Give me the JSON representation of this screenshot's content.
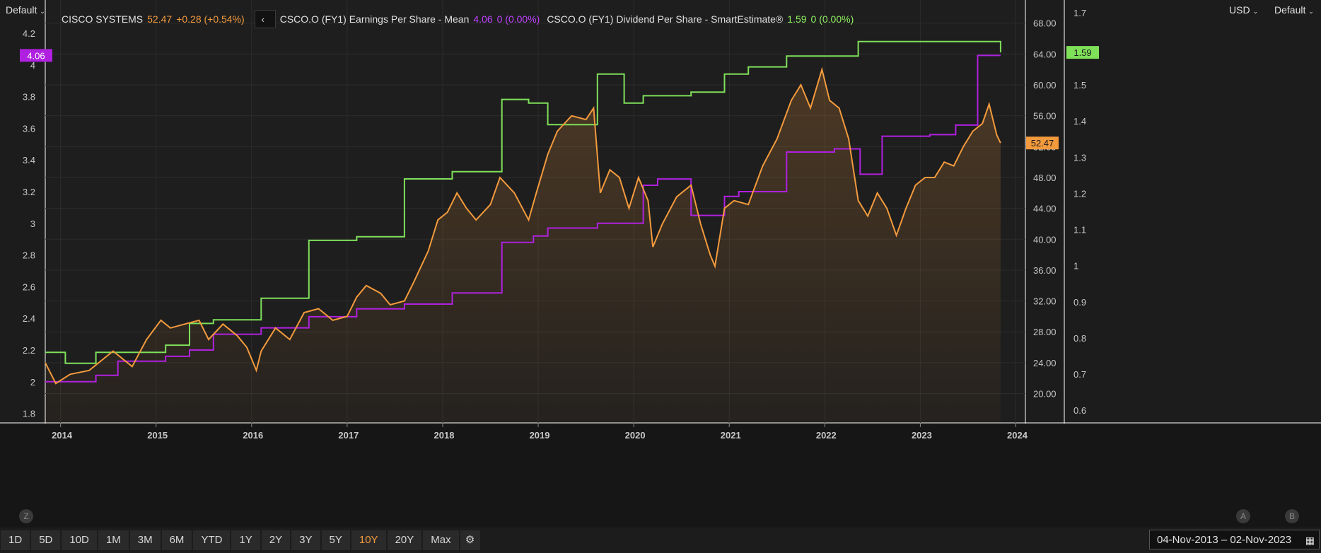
{
  "scale_left_label": "Default",
  "scale_right_label": "Default",
  "currency_label": "USD",
  "legend": {
    "price_name": "CISCO SYSTEMS",
    "price_value": "52.47",
    "price_change": "+0.28 (+0.54%)",
    "nav_icon": "chevron-left-icon",
    "eps_name": "CSCO.O (FY1) Earnings Per Share - Mean",
    "eps_value": "4.06",
    "eps_change": "0 (0.00%)",
    "dps_name": "CSCO.O (FY1) Dividend Per Share - SmartEstimate®",
    "dps_value": "1.59",
    "dps_change": "0 (0.00%)"
  },
  "colors": {
    "price": "#f39a3d",
    "eps": "#b020e0",
    "dps": "#7fe05a",
    "background": "#1c1c1c",
    "grid": "#2c2c2c"
  },
  "range_buttons": [
    "1D",
    "5D",
    "10D",
    "1M",
    "3M",
    "6M",
    "YTD",
    "1Y",
    "2Y",
    "3Y",
    "5Y",
    "10Y",
    "20Y",
    "Max"
  ],
  "active_range": "10Y",
  "settings_icon": "gear-icon",
  "calendar_icon": "calendar-icon",
  "date_range": "04-Nov-2013  –  02-Nov-2023",
  "corner_z": "Z",
  "corner_a": "A",
  "corner_b": "B",
  "chart_data": {
    "type": "line",
    "x_ticks": [
      "2014",
      "2015",
      "2016",
      "2017",
      "2018",
      "2019",
      "2020",
      "2021",
      "2022",
      "2023",
      "2024"
    ],
    "xlim": [
      2013.84,
      2024.1
    ],
    "axes": {
      "left": {
        "ticks": [
          "1.8",
          "2",
          "2.2",
          "2.4",
          "2.6",
          "2.8",
          "3",
          "3.2",
          "3.4",
          "3.6",
          "3.8",
          "4",
          "4.2"
        ],
        "ylim": [
          1.74,
          4.41
        ],
        "series": "EPS"
      },
      "price": {
        "ticks": [
          "20.00",
          "24.00",
          "28.00",
          "32.00",
          "36.00",
          "40.00",
          "44.00",
          "48.00",
          "52.00",
          "56.00",
          "60.00",
          "64.00",
          "68.00"
        ],
        "ylim": [
          16.2,
          71.0
        ],
        "unit": "USD",
        "series": "Price"
      },
      "right": {
        "ticks": [
          "0.6",
          "0.7",
          "0.8",
          "0.9",
          "1",
          "1.1",
          "1.2",
          "1.3",
          "1.4",
          "1.5",
          "1.7"
        ],
        "ylim": [
          0.565,
          1.735
        ],
        "series": "DPS"
      }
    },
    "last_value_badges": {
      "eps": "4.06",
      "price": "52.47",
      "dps": "1.59"
    },
    "series": [
      {
        "name": "CISCO SYSTEMS",
        "axis": "price",
        "style": "area",
        "x": [
          2013.84,
          2013.95,
          2014.1,
          2014.3,
          2014.55,
          2014.75,
          2014.9,
          2015.05,
          2015.15,
          2015.3,
          2015.45,
          2015.55,
          2015.7,
          2015.85,
          2015.95,
          2016.05,
          2016.1,
          2016.25,
          2016.4,
          2016.55,
          2016.7,
          2016.85,
          2017.0,
          2017.1,
          2017.2,
          2017.35,
          2017.45,
          2017.6,
          2017.7,
          2017.85,
          2017.95,
          2018.05,
          2018.15,
          2018.25,
          2018.35,
          2018.5,
          2018.6,
          2018.75,
          2018.9,
          2018.98,
          2019.1,
          2019.2,
          2019.35,
          2019.5,
          2019.58,
          2019.65,
          2019.75,
          2019.85,
          2019.95,
          2020.05,
          2020.15,
          2020.2,
          2020.3,
          2020.45,
          2020.6,
          2020.7,
          2020.8,
          2020.85,
          2020.95,
          2021.05,
          2021.2,
          2021.35,
          2021.5,
          2021.65,
          2021.75,
          2021.85,
          2021.97,
          2022.05,
          2022.15,
          2022.25,
          2022.35,
          2022.45,
          2022.55,
          2022.65,
          2022.75,
          2022.85,
          2022.95,
          2023.05,
          2023.15,
          2023.25,
          2023.35,
          2023.45,
          2023.55,
          2023.65,
          2023.72,
          2023.8,
          2023.84
        ],
        "y": [
          24.0,
          21.3,
          22.5,
          23.0,
          25.5,
          23.5,
          27.0,
          29.5,
          28.5,
          29.0,
          29.5,
          27.0,
          29.0,
          27.5,
          26.0,
          23.0,
          25.5,
          28.5,
          27.0,
          30.5,
          31.0,
          29.5,
          30.0,
          32.5,
          34.0,
          33.0,
          31.5,
          32.0,
          34.5,
          38.5,
          42.5,
          43.5,
          46.0,
          44.0,
          42.5,
          44.5,
          48.0,
          46.0,
          42.5,
          46.0,
          51.0,
          54.0,
          56.0,
          55.5,
          57.0,
          46.0,
          49.0,
          48.0,
          44.0,
          48.0,
          45.0,
          39.0,
          42.0,
          45.5,
          47.0,
          42.0,
          38.0,
          36.5,
          44.0,
          45.0,
          44.5,
          49.5,
          53.0,
          58.0,
          60.0,
          57.0,
          62.0,
          58.0,
          57.0,
          53.0,
          45.0,
          43.0,
          46.0,
          44.0,
          40.5,
          44.0,
          47.0,
          48.0,
          48.0,
          50.0,
          49.5,
          52.0,
          54.0,
          55.0,
          57.5,
          53.5,
          52.47
        ]
      },
      {
        "name": "CSCO.O (FY1) Earnings Per Share - Mean",
        "axis": "left",
        "style": "step",
        "x": [
          2013.84,
          2014.05,
          2014.37,
          2014.6,
          2014.85,
          2015.1,
          2015.35,
          2015.6,
          2016.1,
          2016.6,
          2017.1,
          2017.6,
          2018.1,
          2018.62,
          2018.95,
          2019.1,
          2019.62,
          2020.1,
          2020.25,
          2020.6,
          2020.95,
          2021.1,
          2021.6,
          2022.1,
          2022.37,
          2022.6,
          2023.1,
          2023.37,
          2023.6,
          2023.84
        ],
        "y": [
          2.0,
          2.0,
          2.04,
          2.13,
          2.13,
          2.16,
          2.2,
          2.3,
          2.34,
          2.41,
          2.46,
          2.49,
          2.56,
          2.88,
          2.92,
          2.97,
          3.0,
          3.24,
          3.28,
          3.05,
          3.17,
          3.2,
          3.45,
          3.47,
          3.31,
          3.55,
          3.56,
          3.62,
          4.06,
          4.06
        ]
      },
      {
        "name": "CSCO.O (FY1) Dividend Per Share - SmartEstimate®",
        "axis": "right",
        "style": "step",
        "x": [
          2013.84,
          2014.05,
          2014.37,
          2014.6,
          2014.85,
          2015.1,
          2015.35,
          2015.6,
          2016.1,
          2016.6,
          2017.1,
          2017.6,
          2018.1,
          2018.62,
          2018.9,
          2019.1,
          2019.62,
          2019.9,
          2020.1,
          2020.6,
          2020.95,
          2021.2,
          2021.6,
          2022.1,
          2022.35,
          2023.1,
          2023.37,
          2023.84
        ],
        "y": [
          0.76,
          0.73,
          0.76,
          0.76,
          0.76,
          0.78,
          0.84,
          0.85,
          0.91,
          1.07,
          1.08,
          1.24,
          1.26,
          1.46,
          1.45,
          1.39,
          1.53,
          1.45,
          1.47,
          1.48,
          1.53,
          1.55,
          1.58,
          1.58,
          1.62,
          1.62,
          1.62,
          1.59
        ]
      }
    ]
  }
}
